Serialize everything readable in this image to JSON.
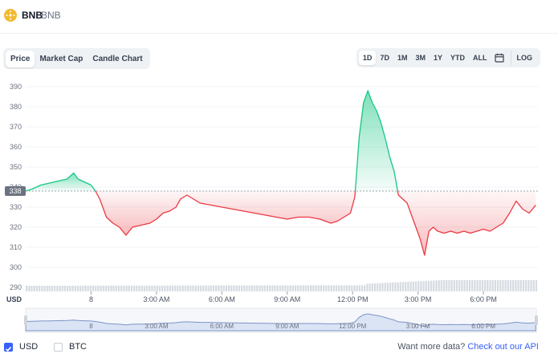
{
  "header": {
    "name": "BNB",
    "symbol": "BNB"
  },
  "tabs": [
    {
      "label": "Price",
      "active": true
    },
    {
      "label": "Market Cap",
      "active": false
    },
    {
      "label": "Candle Chart",
      "active": false
    }
  ],
  "ranges": [
    {
      "label": "1D",
      "active": true
    },
    {
      "label": "7D",
      "active": false
    },
    {
      "label": "1M",
      "active": false
    },
    {
      "label": "3M",
      "active": false
    },
    {
      "label": "1Y",
      "active": false
    },
    {
      "label": "YTD",
      "active": false
    },
    {
      "label": "ALL",
      "active": false
    }
  ],
  "log_label": "LOG",
  "colors": {
    "up": "#16c784",
    "down": "#ea3943",
    "accent": "#3861fb",
    "baseline_badge": "#6b7280"
  },
  "chart_data": {
    "type": "line",
    "unit_label": "USD",
    "ylim": [
      288,
      392
    ],
    "y_ticks": [
      "390",
      "380",
      "370",
      "360",
      "350",
      "340",
      "330",
      "320",
      "310",
      "300",
      "290"
    ],
    "y_tick_values": [
      390,
      380,
      370,
      360,
      350,
      340,
      330,
      320,
      310,
      300,
      290
    ],
    "baseline": {
      "label": "338",
      "value": 338
    },
    "x_ticks": [
      "8",
      "3:00 AM",
      "6:00 AM",
      "9:00 AM",
      "12:00 PM",
      "3:00 PM",
      "6:00 PM"
    ],
    "x_tick_hours": [
      0,
      3,
      6,
      9,
      12,
      15,
      18
    ],
    "xlim_hours": [
      -3,
      20.5
    ],
    "series": [
      {
        "x": [
          -3,
          -2.7,
          -2.3,
          -1.9,
          -1.5,
          -1.1,
          -0.8,
          -0.6,
          -0.4,
          -0.2,
          0,
          0.2,
          0.4,
          0.7,
          1,
          1.3,
          1.6,
          1.9,
          2.3,
          2.7,
          3,
          3.3,
          3.6,
          3.9,
          4.1,
          4.4,
          4.7,
          5,
          5.5,
          6,
          6.5,
          7,
          7.5,
          8,
          8.5,
          9,
          9.5,
          10,
          10.5,
          11,
          11.3,
          11.6,
          11.9,
          12.1,
          12.3,
          12.5,
          12.7,
          12.9,
          13.1,
          13.3,
          13.5,
          13.7,
          13.9,
          14.1,
          14.3,
          14.5,
          14.7,
          14.9,
          15.1,
          15.3,
          15.5,
          15.7,
          15.9,
          16.2,
          16.5,
          16.8,
          17.1,
          17.4,
          17.7,
          18,
          18.3,
          18.6,
          18.9,
          19.2,
          19.5,
          19.8,
          20.1,
          20.4
        ],
        "y": [
          338,
          339,
          341,
          342,
          343,
          344,
          347,
          344,
          343,
          342,
          341,
          338,
          334,
          325,
          322,
          320,
          316,
          320,
          321,
          322,
          324,
          327,
          328,
          330,
          334,
          336,
          334,
          332,
          331,
          330,
          329,
          328,
          327,
          326,
          325,
          324,
          325,
          325,
          324,
          322,
          323,
          325,
          327,
          335,
          365,
          382,
          388,
          382,
          378,
          372,
          364,
          355,
          348,
          336,
          334,
          332,
          326,
          320,
          314,
          306,
          318,
          320,
          318,
          317,
          318,
          317,
          318,
          317,
          318,
          319,
          318,
          320,
          322,
          327,
          333,
          329,
          327,
          331
        ]
      }
    ],
    "volume_range": [
      0.3,
      1.0
    ],
    "navigator": {
      "x_ticks": [
        "8",
        "3:00 AM",
        "6:00 AM",
        "9:00 AM",
        "12:00 PM",
        "3:00 PM",
        "6:00 PM"
      ]
    }
  },
  "footer": {
    "usd_label": "USD",
    "usd_checked": true,
    "btc_label": "BTC",
    "btc_checked": false,
    "api_text": "Want more data?",
    "api_link": "Check out our API"
  }
}
